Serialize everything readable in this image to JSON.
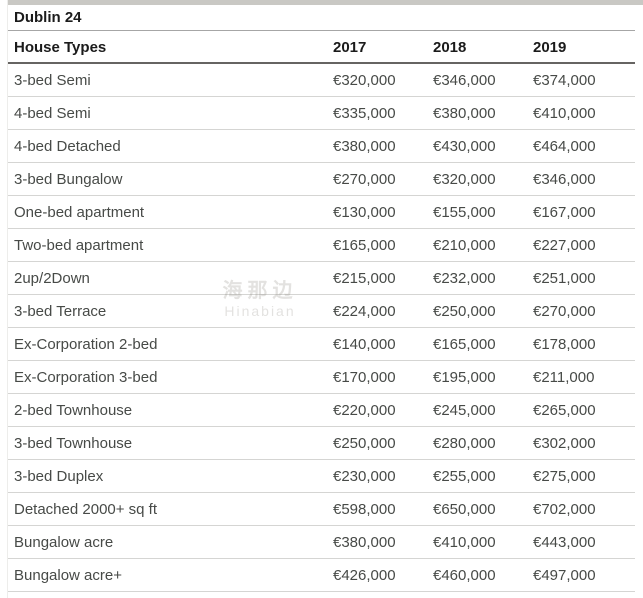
{
  "title": "Dublin 24",
  "table": {
    "columns": [
      "House Types",
      "2017",
      "2018",
      "2019"
    ],
    "rows": [
      [
        "3-bed Semi",
        "€320,000",
        "€346,000",
        "€374,000"
      ],
      [
        "4-bed Semi",
        "€335,000",
        "€380,000",
        "€410,000"
      ],
      [
        "4-bed Detached",
        "€380,000",
        "€430,000",
        "€464,000"
      ],
      [
        "3-bed Bungalow",
        "€270,000",
        "€320,000",
        "€346,000"
      ],
      [
        "One-bed apartment",
        "€130,000",
        "€155,000",
        "€167,000"
      ],
      [
        "Two-bed apartment",
        "€165,000",
        "€210,000",
        "€227,000"
      ],
      [
        "2up/2Down",
        "€215,000",
        "€232,000",
        "€251,000"
      ],
      [
        "3-bed Terrace",
        "€224,000",
        "€250,000",
        "€270,000"
      ],
      [
        "Ex-Corporation 2-bed",
        "€140,000",
        "€165,000",
        "€178,000"
      ],
      [
        "Ex-Corporation 3-bed",
        "€170,000",
        "€195,000",
        "€211,000"
      ],
      [
        "2-bed Townhouse",
        "€220,000",
        "€245,000",
        "€265,000"
      ],
      [
        "3-bed Townhouse",
        "€250,000",
        "€280,000",
        "€302,000"
      ],
      [
        "3-bed Duplex",
        "€230,000",
        "€255,000",
        "€275,000"
      ],
      [
        "Detached 2000+ sq ft",
        "€598,000",
        "€650,000",
        "€702,000"
      ],
      [
        "Bungalow acre",
        "€380,000",
        "€410,000",
        "€443,000"
      ],
      [
        "Bungalow acre+",
        "€426,000",
        "€460,000",
        "€497,000"
      ]
    ]
  },
  "watermark": {
    "line1": "海那边",
    "line2": "Hinabian"
  }
}
